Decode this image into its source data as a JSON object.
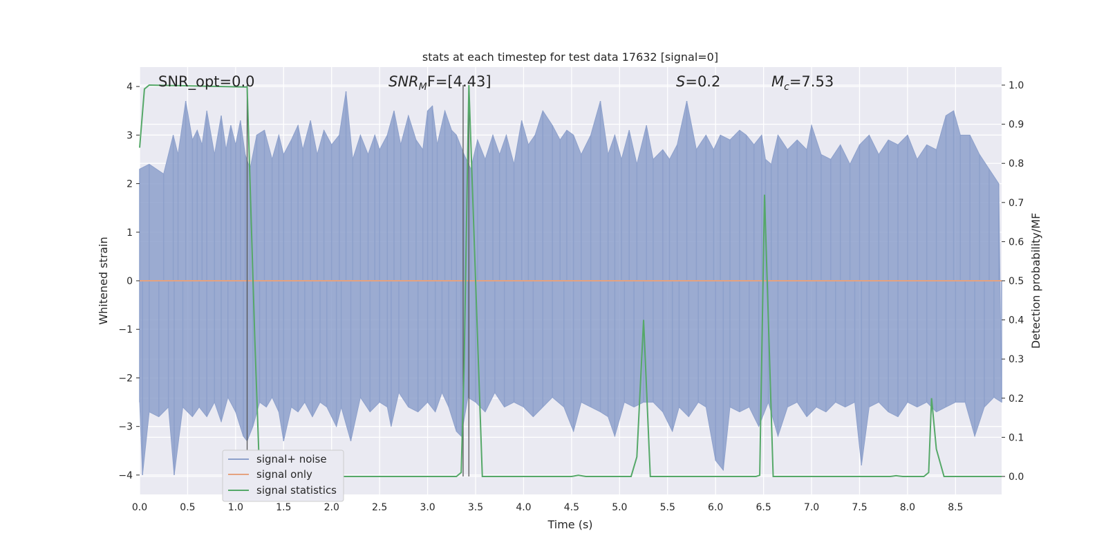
{
  "chart_data": {
    "type": "line",
    "title": "stats at each timestep for test data 17632 [signal=0]",
    "xlabel": "Time (s)",
    "ylabel": "Whitened strain",
    "y2label": "Detection probability/MF",
    "xlim": [
      0,
      8.98
    ],
    "ylim": [
      -4.4,
      4.4
    ],
    "y2lim": [
      -0.046,
      1.046
    ],
    "xticks": [
      "0.0",
      "0.5",
      "1.0",
      "1.5",
      "2.0",
      "2.5",
      "3.0",
      "3.5",
      "4.0",
      "4.5",
      "5.0",
      "5.5",
      "6.0",
      "6.5",
      "7.0",
      "7.5",
      "8.0",
      "8.5"
    ],
    "yticks": [
      "4",
      "3",
      "2",
      "1",
      "0",
      "−1",
      "−2",
      "−3",
      "−4"
    ],
    "y2ticks": [
      "1.0",
      "0.9",
      "0.8",
      "0.7",
      "0.6",
      "0.5",
      "0.4",
      "0.3",
      "0.2",
      "0.1",
      "0.0"
    ],
    "annotations": {
      "snr_opt": "SNR_opt=0.0",
      "snr_mf_main": "SNR",
      "snr_mf_sub": "M",
      "snr_mf_tail": "F=[4.43]",
      "s_main": "S",
      "s_tail": "=0.2",
      "mc_main": "M",
      "mc_sub": "c",
      "mc_tail": "=7.53"
    },
    "legend_position": "lower-left",
    "series": [
      {
        "name": "signal+ noise",
        "color": "#8da0cb",
        "axis": "left",
        "envelope_upper": [
          [
            0.0,
            2.3
          ],
          [
            0.1,
            2.4
          ],
          [
            0.25,
            2.2
          ],
          [
            0.35,
            3.0
          ],
          [
            0.4,
            2.6
          ],
          [
            0.48,
            3.7
          ],
          [
            0.55,
            2.9
          ],
          [
            0.6,
            3.1
          ],
          [
            0.65,
            2.8
          ],
          [
            0.7,
            3.5
          ],
          [
            0.78,
            2.6
          ],
          [
            0.85,
            3.4
          ],
          [
            0.9,
            2.7
          ],
          [
            0.95,
            3.2
          ],
          [
            1.0,
            2.8
          ],
          [
            1.05,
            3.3
          ],
          [
            1.1,
            2.6
          ],
          [
            1.15,
            2.3
          ],
          [
            1.22,
            3.0
          ],
          [
            1.3,
            3.1
          ],
          [
            1.38,
            2.5
          ],
          [
            1.45,
            3.0
          ],
          [
            1.5,
            2.6
          ],
          [
            1.58,
            2.9
          ],
          [
            1.65,
            3.2
          ],
          [
            1.7,
            2.7
          ],
          [
            1.78,
            3.3
          ],
          [
            1.85,
            2.6
          ],
          [
            1.92,
            3.1
          ],
          [
            2.0,
            2.8
          ],
          [
            2.08,
            3.0
          ],
          [
            2.15,
            3.9
          ],
          [
            2.22,
            2.5
          ],
          [
            2.3,
            3.0
          ],
          [
            2.38,
            2.6
          ],
          [
            2.45,
            3.0
          ],
          [
            2.5,
            2.7
          ],
          [
            2.58,
            3.0
          ],
          [
            2.65,
            3.5
          ],
          [
            2.72,
            2.8
          ],
          [
            2.8,
            3.4
          ],
          [
            2.88,
            2.9
          ],
          [
            2.95,
            2.7
          ],
          [
            3.0,
            3.5
          ],
          [
            3.05,
            3.6
          ],
          [
            3.1,
            2.8
          ],
          [
            3.18,
            3.5
          ],
          [
            3.25,
            3.1
          ],
          [
            3.3,
            3.0
          ],
          [
            3.38,
            2.6
          ],
          [
            3.45,
            2.3
          ],
          [
            3.52,
            2.9
          ],
          [
            3.6,
            2.5
          ],
          [
            3.68,
            3.0
          ],
          [
            3.75,
            2.6
          ],
          [
            3.82,
            3.0
          ],
          [
            3.9,
            2.4
          ],
          [
            3.98,
            3.3
          ],
          [
            4.05,
            2.8
          ],
          [
            4.12,
            3.0
          ],
          [
            4.2,
            3.5
          ],
          [
            4.3,
            3.2
          ],
          [
            4.38,
            2.9
          ],
          [
            4.45,
            3.1
          ],
          [
            4.52,
            3.0
          ],
          [
            4.6,
            2.6
          ],
          [
            4.7,
            3.0
          ],
          [
            4.8,
            3.7
          ],
          [
            4.88,
            2.6
          ],
          [
            4.95,
            3.0
          ],
          [
            5.02,
            2.5
          ],
          [
            5.1,
            3.1
          ],
          [
            5.18,
            2.4
          ],
          [
            5.28,
            3.2
          ],
          [
            5.35,
            2.5
          ],
          [
            5.45,
            2.7
          ],
          [
            5.52,
            2.5
          ],
          [
            5.6,
            2.8
          ],
          [
            5.7,
            3.7
          ],
          [
            5.8,
            2.7
          ],
          [
            5.9,
            3.0
          ],
          [
            5.98,
            2.7
          ],
          [
            6.05,
            3.0
          ],
          [
            6.15,
            2.9
          ],
          [
            6.25,
            3.1
          ],
          [
            6.32,
            3.0
          ],
          [
            6.4,
            2.8
          ],
          [
            6.48,
            3.0
          ],
          [
            6.52,
            2.5
          ],
          [
            6.58,
            2.4
          ],
          [
            6.65,
            3.0
          ],
          [
            6.75,
            2.7
          ],
          [
            6.85,
            2.9
          ],
          [
            6.95,
            2.7
          ],
          [
            7.0,
            3.2
          ],
          [
            7.1,
            2.6
          ],
          [
            7.2,
            2.5
          ],
          [
            7.3,
            2.8
          ],
          [
            7.4,
            2.4
          ],
          [
            7.5,
            2.8
          ],
          [
            7.6,
            3.0
          ],
          [
            7.7,
            2.6
          ],
          [
            7.8,
            2.9
          ],
          [
            7.9,
            2.8
          ],
          [
            8.0,
            3.0
          ],
          [
            8.1,
            2.5
          ],
          [
            8.2,
            2.8
          ],
          [
            8.3,
            2.7
          ],
          [
            8.4,
            3.4
          ],
          [
            8.48,
            3.5
          ],
          [
            8.55,
            3.0
          ],
          [
            8.65,
            3.0
          ],
          [
            8.75,
            2.6
          ],
          [
            8.85,
            2.3
          ],
          [
            8.95,
            2.0
          ]
        ],
        "envelope_lower": [
          [
            0.0,
            -2.5
          ],
          [
            0.03,
            -4.0
          ],
          [
            0.1,
            -2.7
          ],
          [
            0.2,
            -2.8
          ],
          [
            0.3,
            -2.6
          ],
          [
            0.36,
            -4.0
          ],
          [
            0.45,
            -2.6
          ],
          [
            0.55,
            -2.8
          ],
          [
            0.62,
            -2.6
          ],
          [
            0.7,
            -2.8
          ],
          [
            0.78,
            -2.5
          ],
          [
            0.85,
            -2.9
          ],
          [
            0.92,
            -2.4
          ],
          [
            1.0,
            -2.7
          ],
          [
            1.08,
            -3.2
          ],
          [
            1.12,
            -3.3
          ],
          [
            1.18,
            -3.0
          ],
          [
            1.25,
            -2.5
          ],
          [
            1.32,
            -2.6
          ],
          [
            1.38,
            -2.4
          ],
          [
            1.45,
            -2.7
          ],
          [
            1.5,
            -3.3
          ],
          [
            1.58,
            -2.6
          ],
          [
            1.65,
            -2.7
          ],
          [
            1.72,
            -2.5
          ],
          [
            1.8,
            -2.8
          ],
          [
            1.88,
            -2.5
          ],
          [
            1.95,
            -2.6
          ],
          [
            2.05,
            -3.0
          ],
          [
            2.1,
            -2.6
          ],
          [
            2.2,
            -3.3
          ],
          [
            2.3,
            -2.4
          ],
          [
            2.4,
            -2.7
          ],
          [
            2.5,
            -2.5
          ],
          [
            2.58,
            -2.6
          ],
          [
            2.62,
            -3.0
          ],
          [
            2.7,
            -2.3
          ],
          [
            2.8,
            -2.6
          ],
          [
            2.9,
            -2.7
          ],
          [
            3.0,
            -2.5
          ],
          [
            3.08,
            -2.7
          ],
          [
            3.15,
            -2.3
          ],
          [
            3.22,
            -2.6
          ],
          [
            3.3,
            -3.1
          ],
          [
            3.35,
            -3.2
          ],
          [
            3.42,
            -2.4
          ],
          [
            3.5,
            -2.5
          ],
          [
            3.6,
            -2.7
          ],
          [
            3.7,
            -2.3
          ],
          [
            3.8,
            -2.6
          ],
          [
            3.9,
            -2.5
          ],
          [
            4.0,
            -2.6
          ],
          [
            4.1,
            -2.8
          ],
          [
            4.2,
            -2.6
          ],
          [
            4.3,
            -2.4
          ],
          [
            4.42,
            -2.6
          ],
          [
            4.52,
            -3.1
          ],
          [
            4.6,
            -2.5
          ],
          [
            4.7,
            -2.6
          ],
          [
            4.8,
            -2.7
          ],
          [
            4.88,
            -2.8
          ],
          [
            4.95,
            -3.2
          ],
          [
            5.05,
            -2.5
          ],
          [
            5.15,
            -2.6
          ],
          [
            5.25,
            -2.5
          ],
          [
            5.35,
            -2.5
          ],
          [
            5.45,
            -2.7
          ],
          [
            5.55,
            -3.1
          ],
          [
            5.62,
            -2.6
          ],
          [
            5.72,
            -2.8
          ],
          [
            5.82,
            -2.5
          ],
          [
            5.9,
            -2.6
          ],
          [
            6.0,
            -3.7
          ],
          [
            6.08,
            -3.9
          ],
          [
            6.15,
            -2.6
          ],
          [
            6.25,
            -2.7
          ],
          [
            6.35,
            -2.6
          ],
          [
            6.45,
            -3.0
          ],
          [
            6.55,
            -2.5
          ],
          [
            6.65,
            -3.2
          ],
          [
            6.75,
            -2.6
          ],
          [
            6.85,
            -2.5
          ],
          [
            6.95,
            -2.8
          ],
          [
            7.05,
            -2.6
          ],
          [
            7.15,
            -2.7
          ],
          [
            7.25,
            -2.5
          ],
          [
            7.35,
            -2.6
          ],
          [
            7.45,
            -2.5
          ],
          [
            7.52,
            -3.8
          ],
          [
            7.6,
            -2.6
          ],
          [
            7.7,
            -2.5
          ],
          [
            7.8,
            -2.7
          ],
          [
            7.9,
            -2.8
          ],
          [
            8.0,
            -2.5
          ],
          [
            8.1,
            -2.6
          ],
          [
            8.2,
            -2.5
          ],
          [
            8.3,
            -2.7
          ],
          [
            8.4,
            -2.6
          ],
          [
            8.5,
            -2.5
          ],
          [
            8.6,
            -2.5
          ],
          [
            8.7,
            -3.2
          ],
          [
            8.8,
            -2.6
          ],
          [
            8.9,
            -2.4
          ],
          [
            8.98,
            -2.5
          ]
        ]
      },
      {
        "name": "signal only",
        "color": "#e5a27f",
        "axis": "left",
        "points": [
          [
            0.0,
            0.0
          ],
          [
            8.98,
            0.0
          ]
        ]
      },
      {
        "name": "signal statistics",
        "color": "#55a868",
        "axis": "right",
        "points": [
          [
            0.0,
            0.84
          ],
          [
            0.05,
            0.99
          ],
          [
            0.1,
            1.0
          ],
          [
            1.12,
            0.995
          ],
          [
            1.2,
            0.35
          ],
          [
            1.25,
            0.0
          ],
          [
            3.3,
            0.0
          ],
          [
            3.35,
            0.01
          ],
          [
            3.38,
            0.28
          ],
          [
            3.43,
            1.0
          ],
          [
            3.5,
            0.5
          ],
          [
            3.57,
            0.0
          ],
          [
            4.5,
            0.0
          ],
          [
            4.57,
            0.003
          ],
          [
            4.65,
            0.0
          ],
          [
            5.12,
            0.0
          ],
          [
            5.18,
            0.05
          ],
          [
            5.25,
            0.4
          ],
          [
            5.32,
            0.0
          ],
          [
            6.42,
            0.0
          ],
          [
            6.46,
            0.003
          ],
          [
            6.51,
            0.72
          ],
          [
            6.6,
            0.0
          ],
          [
            7.82,
            0.0
          ],
          [
            7.88,
            0.002
          ],
          [
            7.95,
            0.0
          ],
          [
            8.17,
            0.0
          ],
          [
            8.22,
            0.01
          ],
          [
            8.25,
            0.2
          ],
          [
            8.3,
            0.07
          ],
          [
            8.38,
            0.0
          ],
          [
            8.98,
            0.0
          ]
        ]
      }
    ],
    "vertical_markers_x": [
      1.12,
      3.37,
      3.43
    ]
  }
}
